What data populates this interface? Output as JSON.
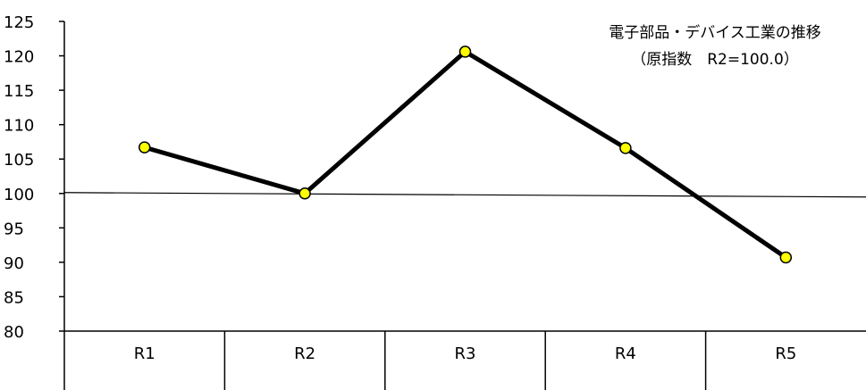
{
  "chart_data": {
    "type": "line",
    "title": "電子部品・デバイス工業の推移",
    "subtitle": "（原指数　R2=100.0）",
    "categories": [
      "R1",
      "R2",
      "R3",
      "R4",
      "R5"
    ],
    "series": [
      {
        "values": [
          106.7,
          100.0,
          120.6,
          106.6,
          90.7
        ]
      }
    ],
    "ylim": [
      80,
      125
    ],
    "yticks": [
      80,
      85,
      90,
      95,
      100,
      105,
      110,
      115,
      120,
      125
    ],
    "reference_line": 100,
    "grid": false,
    "colors": {
      "line": "#000000",
      "marker_fill": "#ffff00",
      "marker_stroke": "#000000"
    }
  }
}
